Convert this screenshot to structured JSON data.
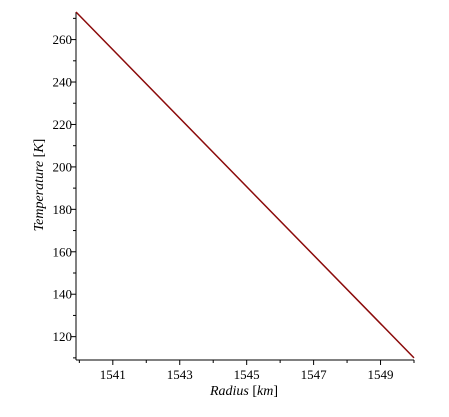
{
  "chart_data": {
    "type": "line",
    "xlabel": {
      "text": "Radius",
      "unit": "km"
    },
    "ylabel": {
      "text": "Temperature",
      "unit": "K"
    },
    "xlim": [
      1539.9,
      1550.0
    ],
    "ylim": [
      109,
      273
    ],
    "x_ticks": [
      1541,
      1543,
      1545,
      1547,
      1549
    ],
    "x_minor_ticks": [
      1540,
      1542,
      1544,
      1546,
      1548,
      1550
    ],
    "y_ticks": [
      120,
      140,
      160,
      180,
      200,
      220,
      240,
      260
    ],
    "y_minor_ticks": [
      110,
      130,
      150,
      170,
      190,
      210,
      230,
      250,
      270
    ],
    "grid": false,
    "series": [
      {
        "color": "#8b0a0a",
        "x": [
          1539.9,
          1550.0
        ],
        "y": [
          273,
          110
        ]
      }
    ]
  }
}
